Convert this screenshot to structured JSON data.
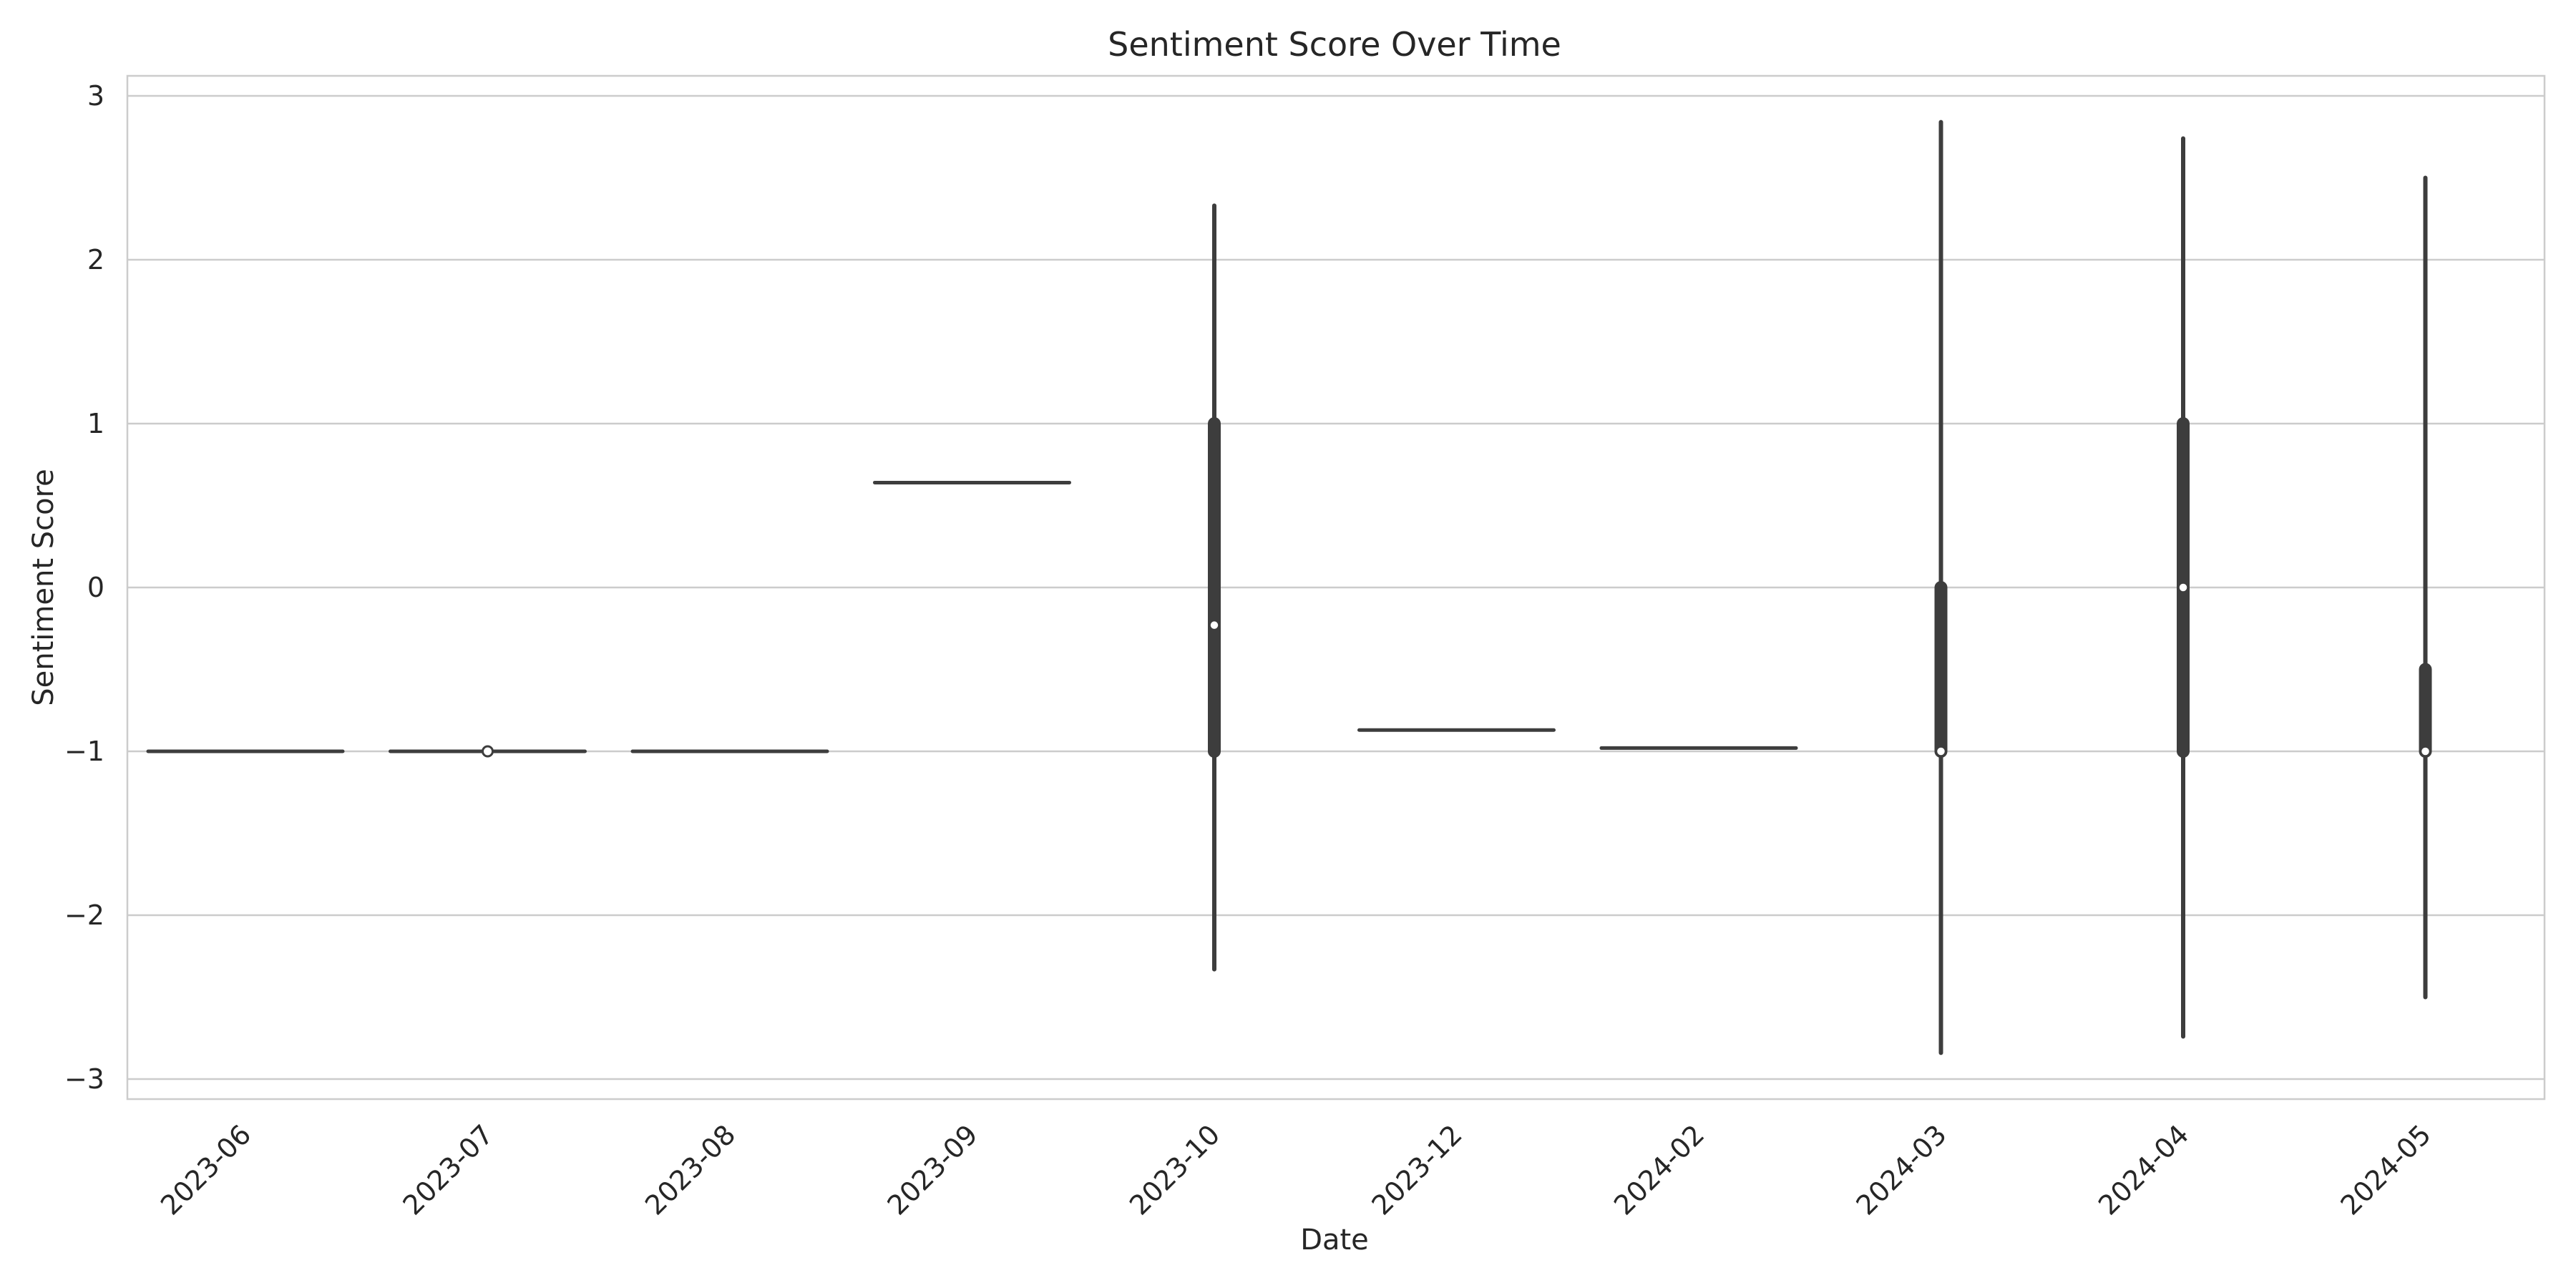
{
  "chart_data": {
    "type": "violin",
    "title": "Sentiment Score Over Time",
    "xlabel": "Date",
    "ylabel": "Sentiment Score",
    "ylim": [
      -3.12,
      3.12
    ],
    "yticks": [
      3,
      2,
      1,
      0,
      -1,
      -2,
      -3
    ],
    "ytick_labels": [
      "3",
      "2",
      "1",
      "0",
      "−1",
      "−2",
      "−3"
    ],
    "grid": "horizontal",
    "categories": [
      "2023-06",
      "2023-07",
      "2023-08",
      "2023-09",
      "2023-10",
      "2023-12",
      "2024-02",
      "2024-03",
      "2024-04",
      "2024-05"
    ],
    "distributions": [
      {
        "category": "2023-06",
        "min": -1.0,
        "q1": -1.0,
        "median": -1.0,
        "q3": -1.0,
        "max": -1.0,
        "single_value": true
      },
      {
        "category": "2023-07",
        "min": -1.0,
        "q1": -1.0,
        "median": -1.0,
        "q3": -1.0,
        "max": -1.0,
        "single_value": true
      },
      {
        "category": "2023-08",
        "min": -1.0,
        "q1": -1.0,
        "median": -1.0,
        "q3": -1.0,
        "max": -1.0,
        "single_value": true
      },
      {
        "category": "2023-09",
        "min": 0.64,
        "q1": 0.64,
        "median": 0.64,
        "q3": 0.64,
        "max": 0.64,
        "single_value": true
      },
      {
        "category": "2023-10",
        "min": -2.33,
        "q1": -1.0,
        "median": -0.23,
        "q3": 1.0,
        "max": 2.33,
        "single_value": false
      },
      {
        "category": "2023-12",
        "min": -0.87,
        "q1": -0.87,
        "median": -0.87,
        "q3": -0.87,
        "max": -0.87,
        "single_value": true
      },
      {
        "category": "2024-02",
        "min": -0.98,
        "q1": -0.98,
        "median": -0.98,
        "q3": -0.98,
        "max": -0.98,
        "single_value": true
      },
      {
        "category": "2024-03",
        "min": -2.84,
        "q1": -1.0,
        "median": -1.0,
        "q3": 0.0,
        "max": 2.84,
        "single_value": false
      },
      {
        "category": "2024-04",
        "min": -2.74,
        "q1": -1.0,
        "median": 0.0,
        "q3": 1.0,
        "max": 2.74,
        "single_value": false
      },
      {
        "category": "2024-05",
        "min": -2.5,
        "q1": -1.0,
        "median": -1.0,
        "q3": -0.5,
        "max": 2.5,
        "single_value": false
      }
    ],
    "colors": {
      "line": "#3d3d3d",
      "grid": "#cccccc",
      "spine": "#cccccc",
      "median_dot": "#ffffff"
    }
  }
}
